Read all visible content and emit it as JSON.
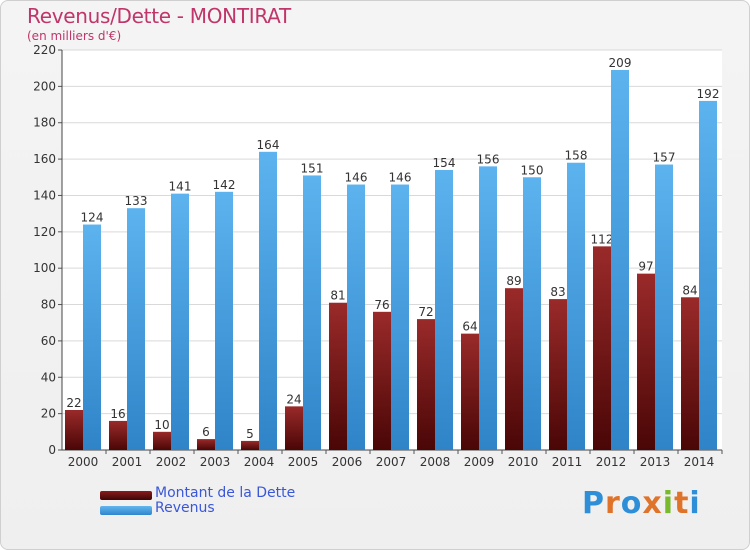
{
  "title": "Revenus/Dette - MONTIRAT",
  "subtitle": "(en milliers d'€)",
  "brand": "Proxiti",
  "colors": {
    "debt": "#8b1c1c",
    "revenue": "#4aa5e6",
    "title": "#c0356a",
    "legend_text": "#3a57d8"
  },
  "chart_data": {
    "type": "bar",
    "categories": [
      "2000",
      "2001",
      "2002",
      "2003",
      "2004",
      "2005",
      "2006",
      "2007",
      "2008",
      "2009",
      "2010",
      "2011",
      "2012",
      "2013",
      "2014"
    ],
    "series": [
      {
        "name": "Montant de la Dette",
        "values": [
          22,
          16,
          10,
          6,
          5,
          24,
          81,
          76,
          72,
          64,
          89,
          83,
          112,
          97,
          84
        ]
      },
      {
        "name": "Revenus",
        "values": [
          124,
          133,
          141,
          142,
          164,
          151,
          146,
          146,
          154,
          156,
          150,
          158,
          209,
          157,
          192
        ]
      }
    ],
    "ylim": [
      0,
      220
    ],
    "yticks": [
      0,
      20,
      40,
      60,
      80,
      100,
      120,
      140,
      160,
      180,
      200,
      220
    ],
    "grid": true,
    "legend": "bottom-left"
  }
}
